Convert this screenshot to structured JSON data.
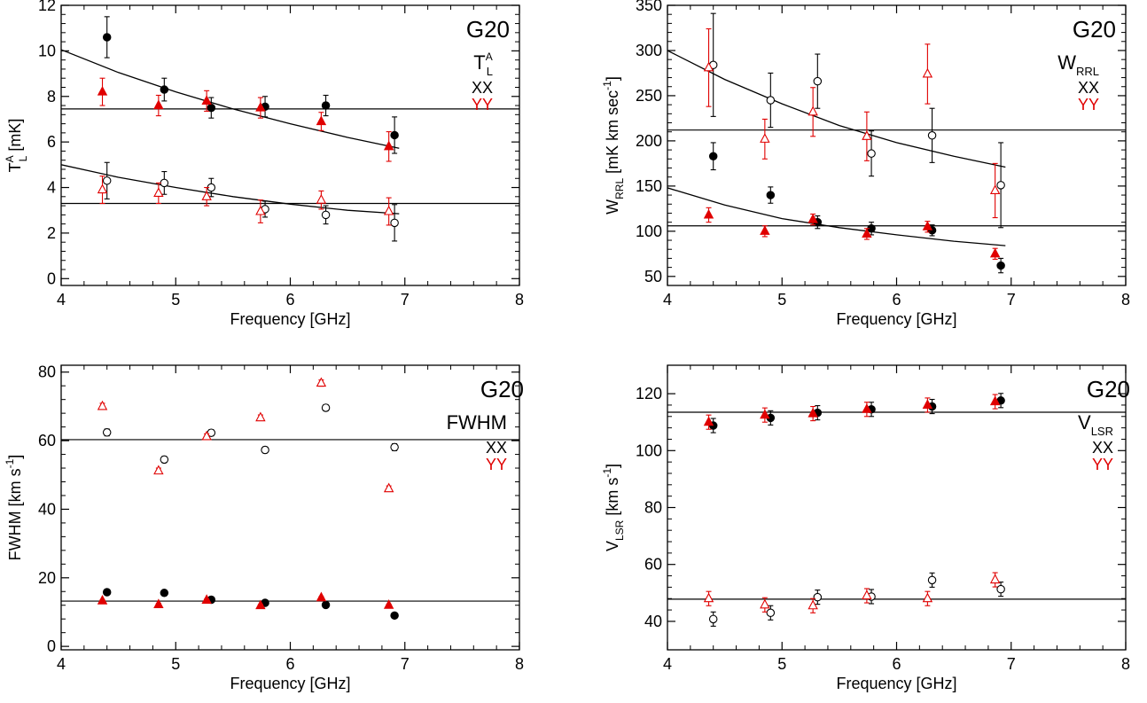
{
  "colors": {
    "xx": "#000000",
    "yy": "#e00000",
    "axis": "#000000",
    "fit": "#000000"
  },
  "chart_data": [
    {
      "id": "tl",
      "type": "scatter",
      "title": "G20",
      "quantity_main": "T",
      "quantity_sub": "L",
      "quantity_sup": "A",
      "legend": [
        "XX",
        "YY"
      ],
      "xlabel": "Frequency [GHz]",
      "ylabel_main": "T",
      "ylabel_sub": "L",
      "ylabel_sup": "A",
      "ylabel_rest": " [mK]",
      "xlim": [
        4,
        8
      ],
      "ylim": [
        -0.3,
        12
      ],
      "xticks": [
        4,
        5,
        6,
        7,
        8
      ],
      "xtick_labels": [
        "4",
        "5",
        "6",
        "7",
        "8"
      ],
      "yticks": [
        0,
        2,
        4,
        6,
        8,
        10,
        12
      ],
      "ytick_labels": [
        "0",
        "2",
        "4",
        "6",
        "8",
        "10",
        "12"
      ],
      "hlines": [
        7.45,
        3.3
      ],
      "curves": [
        {
          "x": [
            4.0,
            4.5,
            5.0,
            5.5,
            6.0,
            6.5,
            6.95
          ],
          "y": [
            10.05,
            9.05,
            8.2,
            7.45,
            6.8,
            6.2,
            5.72
          ]
        },
        {
          "x": [
            4.0,
            4.5,
            5.0,
            5.5,
            6.0,
            6.5,
            6.95
          ],
          "y": [
            5.0,
            4.45,
            4.0,
            3.6,
            3.27,
            3.0,
            2.85
          ]
        }
      ],
      "series": [
        {
          "name": "XX",
          "pol": "xx",
          "filled": true,
          "x": [
            4.4,
            4.9,
            5.31,
            5.78,
            6.31,
            6.91
          ],
          "y": [
            10.6,
            8.3,
            7.5,
            7.55,
            7.6,
            6.3
          ],
          "err": [
            0.9,
            0.5,
            0.45,
            0.45,
            0.45,
            0.8
          ]
        },
        {
          "name": "YY",
          "pol": "yy",
          "filled": true,
          "x": [
            4.36,
            4.85,
            5.27,
            5.74,
            6.27,
            6.86
          ],
          "y": [
            8.2,
            7.6,
            7.8,
            7.5,
            6.9,
            5.8
          ],
          "err": [
            0.6,
            0.45,
            0.45,
            0.45,
            0.4,
            0.65
          ]
        },
        {
          "name": "XX",
          "pol": "xx",
          "filled": false,
          "x": [
            4.4,
            4.9,
            5.31,
            5.78,
            6.31,
            6.91
          ],
          "y": [
            4.3,
            4.2,
            4.0,
            3.05,
            2.8,
            2.45
          ],
          "err": [
            0.8,
            0.5,
            0.4,
            0.35,
            0.4,
            0.8
          ]
        },
        {
          "name": "YY",
          "pol": "yy",
          "filled": false,
          "x": [
            4.36,
            4.85,
            5.27,
            5.74,
            6.27,
            6.86
          ],
          "y": [
            3.9,
            3.75,
            3.6,
            2.95,
            3.45,
            2.95
          ],
          "err": [
            0.6,
            0.45,
            0.4,
            0.5,
            0.4,
            0.6
          ]
        }
      ]
    },
    {
      "id": "wrrl",
      "type": "scatter",
      "title": "G20",
      "quantity_main": "W",
      "quantity_sub": "RRL",
      "quantity_sup": "",
      "legend": [
        "XX",
        "YY"
      ],
      "xlabel": "Frequency [GHz]",
      "ylabel_main": "W",
      "ylabel_sub": "RRL",
      "ylabel_sup": "",
      "ylabel_rest": " [mK km sec",
      "ylabel_rest_sup": "-1",
      "ylabel_tail": "]",
      "xlim": [
        4,
        8
      ],
      "ylim": [
        40,
        350
      ],
      "xticks": [
        4,
        5,
        6,
        7,
        8
      ],
      "xtick_labels": [
        "4",
        "5",
        "6",
        "7",
        "8"
      ],
      "yticks": [
        50,
        100,
        150,
        200,
        250,
        300,
        350
      ],
      "ytick_labels": [
        "50",
        "100",
        "150",
        "200",
        "250",
        "300",
        "350"
      ],
      "hlines": [
        212,
        106
      ],
      "curves": [
        {
          "x": [
            4.0,
            4.5,
            5.0,
            5.5,
            6.0,
            6.5,
            6.95
          ],
          "y": [
            300,
            268,
            241,
            217,
            198,
            183,
            171
          ]
        },
        {
          "x": [
            4.0,
            4.5,
            5.0,
            5.5,
            6.0,
            6.5,
            6.95
          ],
          "y": [
            148,
            129,
            114,
            104,
            96,
            89,
            84
          ]
        }
      ],
      "series": [
        {
          "name": "XX",
          "pol": "xx",
          "filled": false,
          "x": [
            4.4,
            4.9,
            5.31,
            5.78,
            6.31,
            6.91
          ],
          "y": [
            284,
            245,
            266,
            186,
            206,
            151
          ],
          "err": [
            57,
            30,
            30,
            25,
            30,
            47
          ]
        },
        {
          "name": "YY",
          "pol": "yy",
          "filled": false,
          "x": [
            4.36,
            4.85,
            5.27,
            5.74,
            6.27,
            6.86
          ],
          "y": [
            281,
            202,
            232,
            205,
            274,
            145
          ],
          "err": [
            43,
            22,
            27,
            27,
            33,
            30
          ]
        },
        {
          "name": "XX",
          "pol": "xx",
          "filled": true,
          "x": [
            4.4,
            4.9,
            5.31,
            5.78,
            6.31,
            6.91
          ],
          "y": [
            183,
            140,
            110,
            103,
            101,
            62
          ],
          "err": [
            15,
            9,
            7,
            7,
            6,
            8
          ]
        },
        {
          "name": "YY",
          "pol": "yy",
          "filled": true,
          "x": [
            4.36,
            4.85,
            5.27,
            5.74,
            6.27,
            6.86
          ],
          "y": [
            118,
            100,
            113,
            97,
            105,
            75
          ],
          "err": [
            8,
            6,
            6,
            6,
            6,
            6
          ]
        }
      ]
    },
    {
      "id": "fwhm",
      "type": "scatter",
      "title": "G20",
      "quantity_main": "FWHM",
      "quantity_sub": "",
      "quantity_sup": "",
      "legend": [
        "XX",
        "YY"
      ],
      "xlabel": "Frequency [GHz]",
      "ylabel_main": "FWHM [km s",
      "ylabel_sub": "",
      "ylabel_sup": "-1",
      "ylabel_rest": "]",
      "xlim": [
        4,
        8
      ],
      "ylim": [
        -1,
        82
      ],
      "xticks": [
        4,
        5,
        6,
        7,
        8
      ],
      "xtick_labels": [
        "4",
        "5",
        "6",
        "7",
        "8"
      ],
      "yticks": [
        0,
        20,
        40,
        60,
        80
      ],
      "ytick_labels": [
        "0",
        "20",
        "40",
        "60",
        "80"
      ],
      "hlines": [
        60.3,
        13.2
      ],
      "curves": [],
      "series": [
        {
          "name": "XX",
          "pol": "xx",
          "filled": false,
          "x": [
            4.4,
            4.9,
            5.31,
            5.78,
            6.31,
            6.91
          ],
          "y": [
            62.4,
            54.5,
            62.3,
            57.3,
            69.6,
            58.1
          ],
          "err": [
            1.0,
            0.9,
            0.9,
            0.9,
            0.9,
            1.0
          ]
        },
        {
          "name": "YY",
          "pol": "yy",
          "filled": false,
          "x": [
            4.36,
            4.85,
            5.27,
            5.74,
            6.27,
            6.86
          ],
          "y": [
            70.0,
            51.2,
            61.2,
            66.7,
            76.8,
            46.0
          ],
          "err": [
            0.9,
            0.8,
            0.8,
            0.8,
            0.9,
            0.8
          ]
        },
        {
          "name": "XX",
          "pol": "xx",
          "filled": true,
          "x": [
            4.4,
            4.9,
            5.31,
            5.78,
            6.31,
            6.91
          ],
          "y": [
            15.8,
            15.6,
            13.6,
            12.7,
            12.1,
            9.0
          ],
          "err": [
            0.3,
            0.3,
            0.3,
            0.3,
            0.3,
            0.3
          ]
        },
        {
          "name": "YY",
          "pol": "yy",
          "filled": true,
          "x": [
            4.36,
            4.85,
            5.27,
            5.74,
            6.27,
            6.86
          ],
          "y": [
            13.3,
            12.2,
            13.5,
            11.9,
            14.2,
            12.0
          ],
          "err": [
            0.3,
            0.3,
            0.3,
            0.3,
            0.3,
            0.3
          ]
        }
      ]
    },
    {
      "id": "vlsr",
      "type": "scatter",
      "title": "G20",
      "quantity_main": "V",
      "quantity_sub": "LSR",
      "quantity_sup": "",
      "legend": [
        "XX",
        "YY"
      ],
      "xlabel": "Frequency [GHz]",
      "ylabel_main": "V",
      "ylabel_sub": "LSR",
      "ylabel_sup": "",
      "ylabel_rest": " [km s",
      "ylabel_rest_sup": "-1",
      "ylabel_tail": "]",
      "xlim": [
        4,
        8
      ],
      "ylim": [
        30,
        130
      ],
      "xticks": [
        4,
        5,
        6,
        7,
        8
      ],
      "xtick_labels": [
        "4",
        "5",
        "6",
        "7",
        "8"
      ],
      "yticks": [
        40,
        60,
        80,
        100,
        120
      ],
      "ytick_labels": [
        "40",
        "60",
        "80",
        "100",
        "120"
      ],
      "hlines": [
        113.5,
        47.8
      ],
      "curves": [],
      "series": [
        {
          "name": "XX",
          "pol": "xx",
          "filled": true,
          "x": [
            4.4,
            4.9,
            5.31,
            5.78,
            6.31,
            6.91
          ],
          "y": [
            108.8,
            111.5,
            113.3,
            114.5,
            115.5,
            117.6
          ],
          "err": [
            2.5,
            2.5,
            2.5,
            2.5,
            2.5,
            2.5
          ]
        },
        {
          "name": "YY",
          "pol": "yy",
          "filled": true,
          "x": [
            4.36,
            4.85,
            5.27,
            5.74,
            6.27,
            6.86
          ],
          "y": [
            110.0,
            112.5,
            113.0,
            114.5,
            116.0,
            117.2
          ],
          "err": [
            2.5,
            2.5,
            2.5,
            2.5,
            2.5,
            2.5
          ]
        },
        {
          "name": "XX",
          "pol": "xx",
          "filled": false,
          "x": [
            4.4,
            4.9,
            5.31,
            5.78,
            6.31,
            6.91
          ],
          "y": [
            40.8,
            43.0,
            48.5,
            48.7,
            54.5,
            51.3
          ],
          "err": [
            2.5,
            2.5,
            2.5,
            2.5,
            2.5,
            2.5
          ]
        },
        {
          "name": "YY",
          "pol": "yy",
          "filled": false,
          "x": [
            4.36,
            4.85,
            5.27,
            5.74,
            6.27,
            6.86
          ],
          "y": [
            48.0,
            45.8,
            45.5,
            49.0,
            48.0,
            54.6
          ],
          "err": [
            2.5,
            2.5,
            2.5,
            2.5,
            2.5,
            2.5
          ]
        }
      ]
    }
  ]
}
